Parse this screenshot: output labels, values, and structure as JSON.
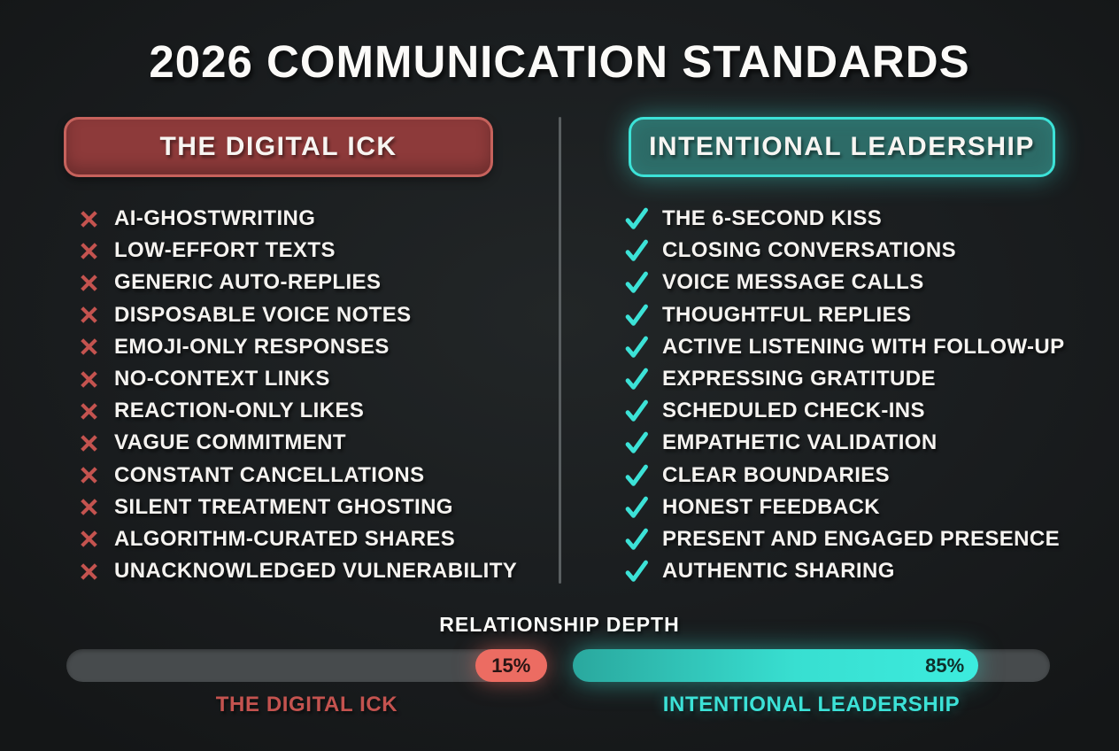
{
  "title": "2026 COMMUNICATION STANDARDS",
  "left_column": {
    "header": "THE DIGITAL ICK",
    "items": [
      "AI-GHOSTWRITING",
      "LOW-EFFORT TEXTS",
      "GENERIC AUTO-REPLIES",
      "DISPOSABLE VOICE NOTES",
      "EMOJI-ONLY RESPONSES",
      "NO-CONTEXT LINKS",
      "REACTION-ONLY LIKES",
      "VAGUE COMMITMENT",
      "CONSTANT CANCELLATIONS",
      "SILENT TREATMENT GHOSTING",
      "ALGORITHM-CURATED SHARES",
      "UNACKNOWLEDGED VULNERABILITY"
    ]
  },
  "right_column": {
    "header": "INTENTIONAL LEADERSHIP",
    "items": [
      "THE 6-SECOND KISS",
      "CLOSING CONVERSATIONS",
      "VOICE MESSAGE CALLS",
      "THOUGHTFUL REPLIES",
      "ACTIVE LISTENING WITH FOLLOW-UP",
      "EXPRESSING GRATITUDE",
      "SCHEDULED CHECK-INS",
      "EMPATHETIC VALIDATION",
      "CLEAR BOUNDARIES",
      "HONEST FEEDBACK",
      "PRESENT AND ENGAGED PRESENCE",
      "AUTHENTIC SHARING"
    ]
  },
  "meter": {
    "label": "RELATIONSHIP DEPTH",
    "left": {
      "value": "15%",
      "percent": 15,
      "caption": "THE DIGITAL ICK"
    },
    "right": {
      "value": "85%",
      "percent": 85,
      "caption": "INTENTIONAL LEADERSHIP"
    }
  },
  "icons": {
    "negative": "x-icon",
    "positive": "check-icon"
  },
  "colors": {
    "accent_red": "#c4534f",
    "accent_cyan": "#3ce2d7",
    "header_red_fill": "#8d3a3a",
    "header_red_border": "#c6625c",
    "header_teal_fill": "#2d6b67",
    "pill_red": "#ec6c62"
  },
  "chart_data": {
    "type": "bar",
    "title": "RELATIONSHIP DEPTH",
    "categories": [
      "THE DIGITAL ICK",
      "INTENTIONAL LEADERSHIP"
    ],
    "values": [
      15,
      85
    ],
    "unit": "%",
    "xlim": [
      0,
      100
    ]
  }
}
